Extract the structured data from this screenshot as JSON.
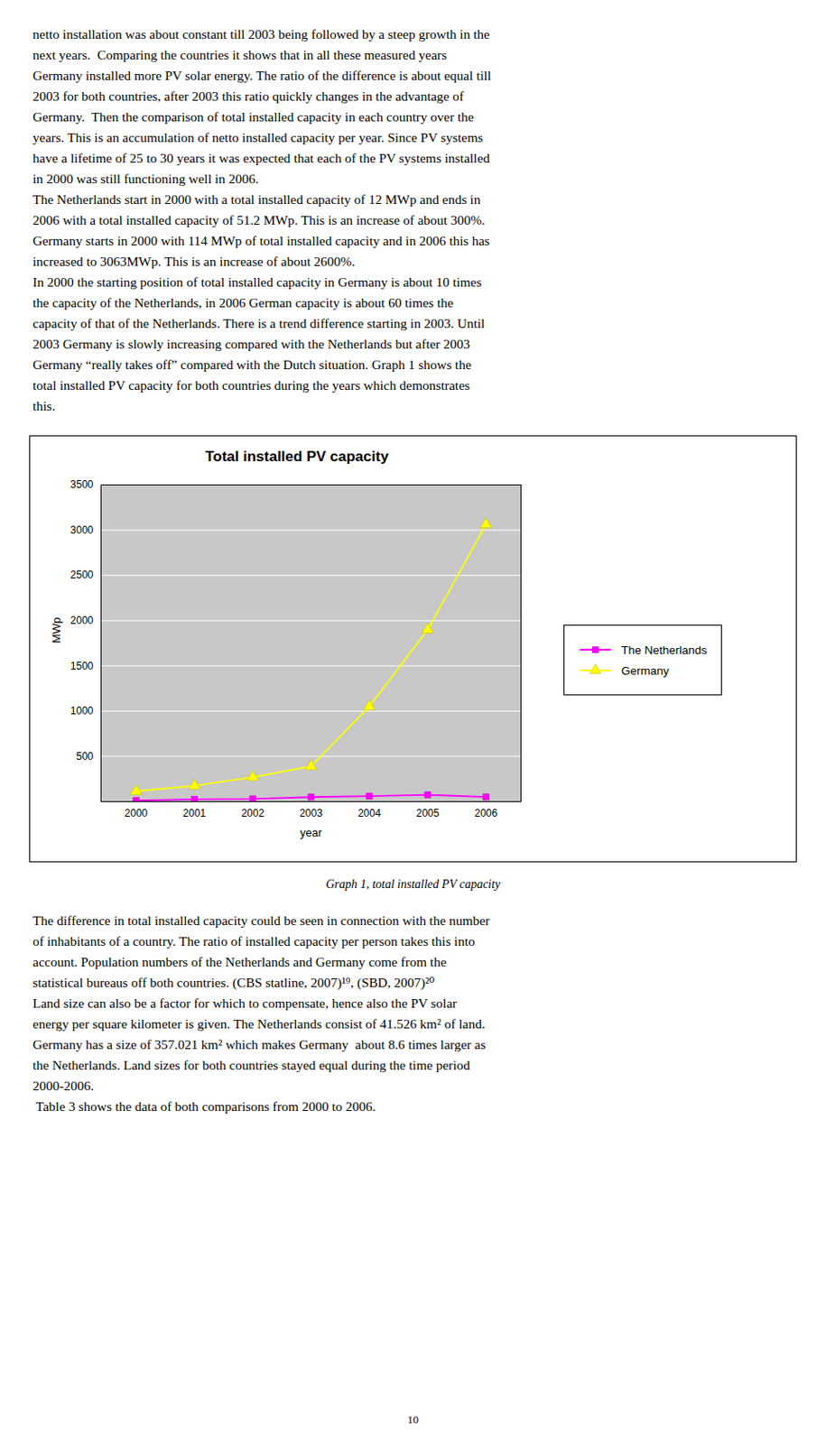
{
  "text_above": [
    "netto installation was about constant till 2003 being followed by a steep growth in the",
    "next years.  Comparing the countries it shows that in all these measured years",
    "Germany installed more PV solar energy. The ratio of the difference is about equal till",
    "2003 for both countries, after 2003 this ratio quickly changes in the advantage of",
    "Germany.  Then the comparison of total installed capacity in each country over the",
    "years. This is an accumulation of netto installed capacity per year. Since PV systems",
    "have a lifetime of 25 to 30 years it was expected that each of the PV systems installed",
    "in 2000 was still functioning well in 2006.",
    "The Netherlands start in 2000 with a total installed capacity of 12 MWp and ends in",
    "2006 with a total installed capacity of 51.2 MWp. This is an increase of about 300%.",
    "Germany starts in 2000 with 114 MWp of total installed capacity and in 2006 this has",
    "increased to 3063MWp. This is an increase of about 2600%.",
    "In 2000 the starting position of total installed capacity in Germany is about 10 times",
    "the capacity of the Netherlands, in 2006 German capacity is about 60 times the",
    "capacity of that of the Netherlands. There is a trend difference starting in 2003. Until",
    "2003 Germany is slowly increasing compared with the Netherlands but after 2003",
    "Germany “really takes off” compared with the Dutch situation. Graph 1 shows the",
    "total installed PV capacity for both countries during the years which demonstrates",
    "this."
  ],
  "chart_data": {
    "type": "line",
    "title": "Total installed PV capacity",
    "xlabel": "year",
    "ylabel": "MWp",
    "x": [
      2000,
      2001,
      2002,
      2003,
      2004,
      2005,
      2006
    ],
    "series": [
      {
        "name": "The Netherlands",
        "color": "#ff00ff",
        "marker": "square",
        "values": [
          12,
          25,
          30,
          50,
          60,
          75,
          51.2
        ]
      },
      {
        "name": "Germany",
        "color": "#ffff00",
        "marker": "triangle",
        "values": [
          114,
          175,
          270,
          390,
          1050,
          1900,
          3063
        ]
      }
    ],
    "xlim": [
      1999.4,
      2006.6
    ],
    "xticks": [
      2000,
      2001,
      2002,
      2003,
      2004,
      2005,
      2006
    ],
    "ylim": [
      0,
      3500
    ],
    "yticks": [
      500,
      1000,
      1500,
      2000,
      2500,
      3000,
      3500
    ],
    "grid": true,
    "legend": "right"
  },
  "caption": "Graph 1, total installed PV capacity",
  "text_below": [
    "The difference in total installed capacity could be seen in connection with the number",
    "of inhabitants of a country. The ratio of installed capacity per person takes this into",
    "account. Population numbers of the Netherlands and Germany come from the",
    "statistical bureaus off both countries. (CBS statline, 2007)¹⁹, (SBD, 2007)²⁰",
    "Land size can also be a factor for which to compensate, hence also the PV solar",
    "energy per square kilometer is given. The Netherlands consist of 41.526 km² of land.",
    "Germany has a size of 357.021 km² which makes Germany  about 8.6 times larger as",
    "the Netherlands. Land sizes for both countries stayed equal during the time period",
    "2000-2006.",
    " Table 3 shows the data of both comparisons from 2000 to 2006."
  ],
  "page_number": "10"
}
